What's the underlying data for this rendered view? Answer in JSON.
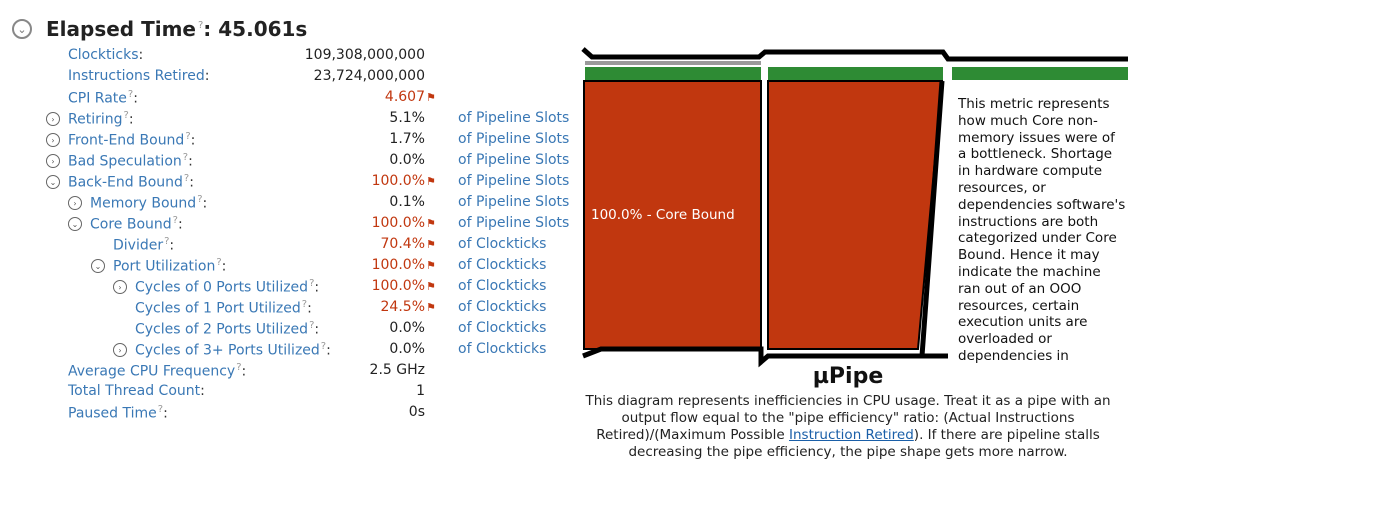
{
  "header": {
    "title": "Elapsed Time",
    "help": "?",
    "value": ": 45.061s",
    "toggle": "⌄"
  },
  "rows": [
    {
      "label": "Clockticks",
      "help": "",
      "value": "109,308,000,000",
      "flag": false,
      "unit": "",
      "toggle": ""
    },
    {
      "label": "Instructions Retired",
      "help": "",
      "value": "23,724,000,000",
      "flag": false,
      "unit": "",
      "toggle": ""
    },
    {
      "label": "CPI Rate",
      "help": "?",
      "value": "4.607",
      "flag": true,
      "unit": "",
      "toggle": ""
    },
    {
      "label": "Retiring",
      "help": "?",
      "value": "5.1%",
      "flag": false,
      "unit": "of Pipeline Slots",
      "toggle": "›"
    },
    {
      "label": "Front-End Bound",
      "help": "?",
      "value": "1.7%",
      "flag": false,
      "unit": "of Pipeline Slots",
      "toggle": "›"
    },
    {
      "label": "Bad Speculation",
      "help": "?",
      "value": "0.0%",
      "flag": false,
      "unit": "of Pipeline Slots",
      "toggle": "›"
    },
    {
      "label": "Back-End Bound",
      "help": "?",
      "value": "100.0%",
      "flag": true,
      "unit": "of Pipeline Slots",
      "toggle": "⌄"
    },
    {
      "label": "Memory Bound",
      "help": "?",
      "value": "0.1%",
      "flag": false,
      "unit": "of Pipeline Slots",
      "toggle": "›"
    },
    {
      "label": "Core Bound",
      "help": "?",
      "value": "100.0%",
      "flag": true,
      "unit": "of Pipeline Slots",
      "toggle": "⌄"
    },
    {
      "label": "Divider",
      "help": "?",
      "value": "70.4%",
      "flag": true,
      "unit": "of Clockticks",
      "toggle": ""
    },
    {
      "label": "Port Utilization",
      "help": "?",
      "value": "100.0%",
      "flag": true,
      "unit": "of Clockticks",
      "toggle": "⌄"
    },
    {
      "label": "Cycles of 0 Ports Utilized",
      "help": "?",
      "value": "100.0%",
      "flag": true,
      "unit": "of Clockticks",
      "toggle": "›"
    },
    {
      "label": "Cycles of 1 Port Utilized",
      "help": "?",
      "value": "24.5%",
      "flag": true,
      "unit": "of Clockticks",
      "toggle": ""
    },
    {
      "label": "Cycles of 2 Ports Utilized",
      "help": "?",
      "value": "0.0%",
      "flag": false,
      "unit": "of Clockticks",
      "toggle": ""
    },
    {
      "label": "Cycles of 3+ Ports Utilized",
      "help": "?",
      "value": "0.0%",
      "flag": false,
      "unit": "of Clockticks",
      "toggle": "›"
    },
    {
      "label": "Average CPU Frequency",
      "help": "?",
      "value": "2.5 GHz",
      "flag": false,
      "unit": "",
      "toggle": ""
    },
    {
      "label": "Total Thread Count",
      "help": "",
      "value": "1",
      "flag": false,
      "unit": "",
      "toggle": ""
    },
    {
      "label": "Paused Time",
      "help": "?",
      "value": "0s",
      "flag": false,
      "unit": "",
      "toggle": ""
    }
  ],
  "pipe": {
    "segment_label": "100.0% - Core Bound",
    "description": "This metric represents how much Core non-memory issues were of a bottleneck. Shortage in hardware compute resources, or dependencies software's instructions are both categorized under Core Bound. Hence it may indicate the machine ran out of an OOO resources, certain execution units are overloaded or dependencies in",
    "colors": {
      "core_bound": "#c1370f",
      "retiring": "#2e8b34",
      "outline": "#000000"
    }
  },
  "upipe": {
    "title": "µPipe",
    "caption_before": "This diagram represents inefficiencies in CPU usage. Treat it as a pipe with an output flow equal to the \"pipe efficiency\" ratio: (Actual Instructions Retired)/(Maximum Possible ",
    "caption_link": "Instruction Retired",
    "caption_after": "). If there are pipeline stalls decreasing the pipe efficiency, the pipe shape gets more narrow."
  },
  "flag_glyph": "⚑"
}
